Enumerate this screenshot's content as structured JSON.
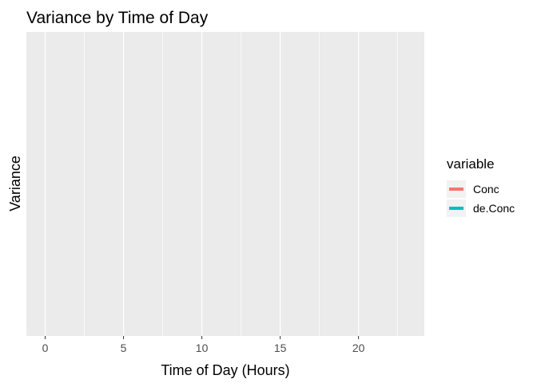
{
  "chart_data": {
    "type": "bar",
    "title": "Variance by Time of Day",
    "xlabel": "Time of Day (Hours)",
    "ylabel": "Variance",
    "xlim": [
      -1.2,
      24.2
    ],
    "x_ticks": [
      0,
      5,
      10,
      15,
      20
    ],
    "x_tick_labels": [
      "0",
      "5",
      "10",
      "15",
      "20"
    ],
    "grid": true,
    "background": "#ebebeb",
    "legend": {
      "title": "variable",
      "placement": "right",
      "entries": [
        {
          "label": "Conc",
          "color": "#f8766d"
        },
        {
          "label": "de.Conc",
          "color": "#00bfc4"
        }
      ]
    },
    "series": [
      {
        "name": "Conc",
        "values": []
      },
      {
        "name": "de.Conc",
        "values": []
      }
    ]
  }
}
